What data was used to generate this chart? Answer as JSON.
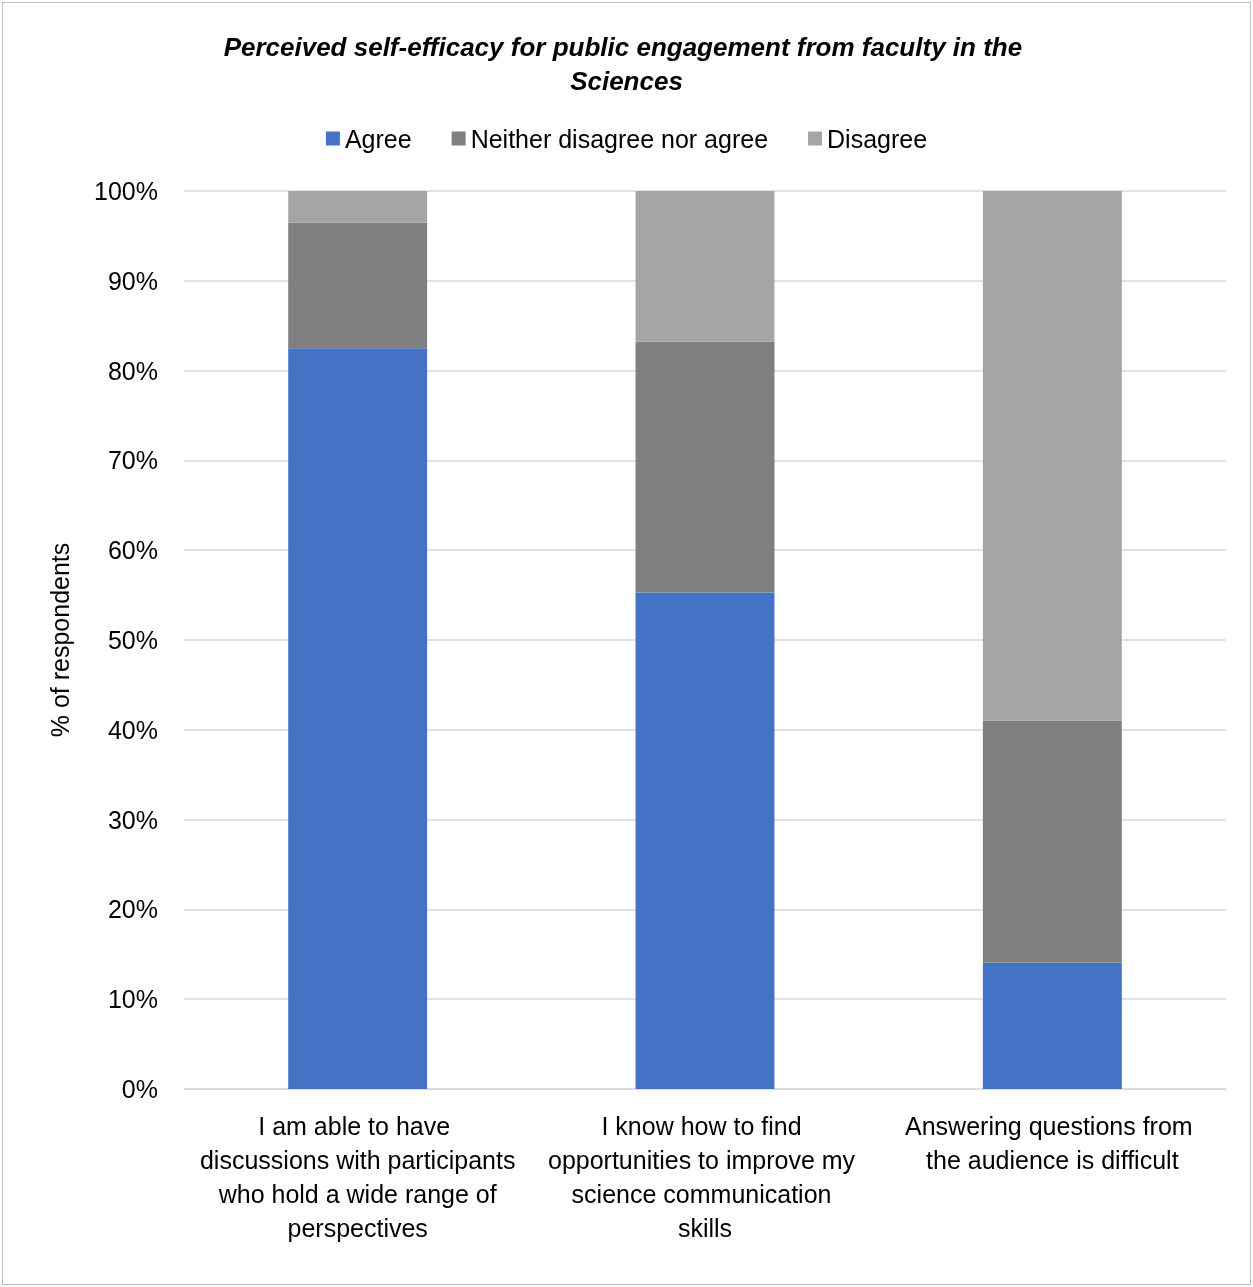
{
  "chart_data": {
    "type": "bar",
    "title": "Perceived self-efficacy for public engagement from faculty in the Sciences",
    "ylabel": "% of respondents",
    "categories": [
      "I am able to have discussions with participants who hold a wide range of perspectives",
      "I know how to find opportunities to improve my science communication skills",
      "Answering questions from the audience is difficult"
    ],
    "series": [
      {
        "name": "Agree",
        "color": "#4472c4",
        "values": [
          82.5,
          55.3,
          14.1
        ]
      },
      {
        "name": "Neither disagree nor agree",
        "color": "#7f7f7f",
        "values": [
          14.0,
          27.9,
          26.9
        ]
      },
      {
        "name": "Disagree",
        "color": "#a5a5a5",
        "values": [
          3.5,
          16.8,
          59.0
        ]
      }
    ],
    "stacked": true,
    "ylim": [
      0,
      100
    ],
    "yticks": [
      {
        "value": 0,
        "label": "0%"
      },
      {
        "value": 10,
        "label": "10%"
      },
      {
        "value": 20,
        "label": "20%"
      },
      {
        "value": 30,
        "label": "30%"
      },
      {
        "value": 40,
        "label": "40%"
      },
      {
        "value": 50,
        "label": "50%"
      },
      {
        "value": 60,
        "label": "60%"
      },
      {
        "value": 70,
        "label": "70%"
      },
      {
        "value": 80,
        "label": "80%"
      },
      {
        "value": 90,
        "label": "90%"
      },
      {
        "value": 100,
        "label": "100%"
      }
    ],
    "grid": "y",
    "legend": "top"
  }
}
